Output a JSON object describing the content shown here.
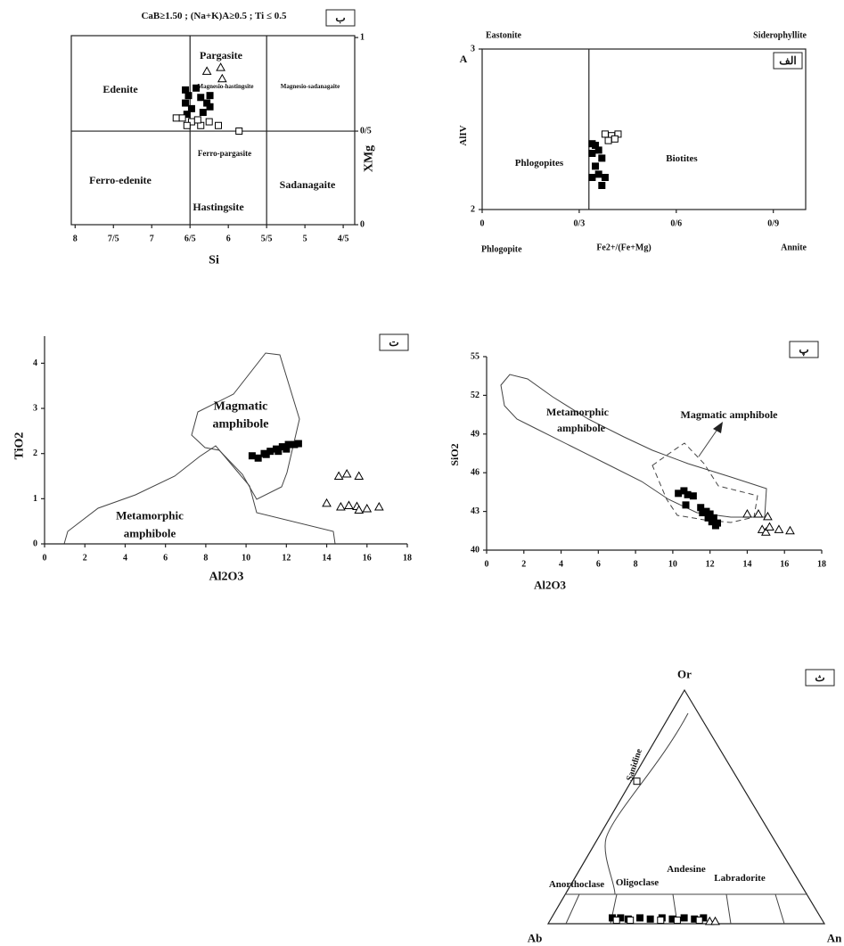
{
  "chart_data": [
    {
      "type": "scatter",
      "title": "CaB≥1.50 ; (Na+K)A≥0.5 ; Ti ≤ 0.5",
      "panel_label": "ب",
      "xlabel": "Si",
      "ylabel": "XMg",
      "xlim": [
        8.05,
        4.35
      ],
      "ylim": [
        0,
        1.01
      ],
      "xticks": [
        8,
        {
          "value": 7.5,
          "label": "7/5"
        },
        7,
        {
          "value": 6.5,
          "label": "6/5"
        },
        6,
        {
          "value": 5.5,
          "label": "5/5"
        },
        5,
        {
          "value": 4.5,
          "label": "4/5"
        }
      ],
      "yticks": [
        0,
        {
          "value": 0.5,
          "label": "0/5"
        },
        1
      ],
      "dividers_x": [
        6.5,
        5.5
      ],
      "dividers_y": [
        0.5
      ],
      "annotations": [
        "Edenite",
        "Pargasite",
        "Magnesio-hastingsite",
        "Magnesio-sadanagaite",
        "Ferro-edenite",
        "Ferro-pargasite",
        "Sadanagaite",
        "Hastingsite"
      ],
      "series": [
        {
          "marker": "square",
          "color": "#000000",
          "x": [
            6.56,
            6.52,
            6.56,
            6.48,
            6.36,
            6.28,
            6.24,
            6.33,
            6.42,
            6.54,
            6.24
          ],
          "values": [
            0.72,
            0.69,
            0.65,
            0.62,
            0.68,
            0.65,
            0.69,
            0.6,
            0.73,
            0.59,
            0.63
          ]
        },
        {
          "marker": "open-square",
          "color": "#000000",
          "x": [
            6.68,
            6.6,
            6.48,
            6.36,
            6.25,
            6.13,
            6.4,
            5.86,
            6.54
          ],
          "values": [
            0.57,
            0.57,
            0.55,
            0.53,
            0.55,
            0.53,
            0.56,
            0.5,
            0.53
          ]
        },
        {
          "marker": "triangle",
          "color": "#000000",
          "x": [
            6.28,
            6.1,
            6.08
          ],
          "values": [
            0.82,
            0.84,
            0.78
          ]
        }
      ]
    },
    {
      "type": "scatter",
      "panel_label": "الف",
      "xlabel": "Fe2+/(Fe+Mg)",
      "ylabel": "AlIV",
      "xlim": [
        0,
        1
      ],
      "ylim": [
        2,
        3
      ],
      "xticks": [
        0,
        {
          "value": 0.3,
          "label": "0/3"
        },
        {
          "value": 0.6,
          "label": "0/6"
        },
        {
          "value": 0.9,
          "label": "0/9"
        }
      ],
      "yticks": [
        2,
        3
      ],
      "dividers_x": [
        0.33
      ],
      "annotations": [
        "Eastonite",
        "Siderophyllite",
        "Phlogopite",
        "Annite",
        "Phlogopites",
        "Biotites",
        "A"
      ],
      "series": [
        {
          "marker": "square",
          "color": "#000000",
          "x": [
            0.34,
            0.35,
            0.36,
            0.34,
            0.37,
            0.35,
            0.36,
            0.38,
            0.34,
            0.37
          ],
          "values": [
            2.41,
            2.4,
            2.37,
            2.35,
            2.32,
            2.27,
            2.22,
            2.2,
            2.2,
            2.15
          ]
        },
        {
          "marker": "open-square",
          "color": "#000000",
          "x": [
            0.38,
            0.4,
            0.42,
            0.39,
            0.41
          ],
          "values": [
            2.47,
            2.46,
            2.47,
            2.43,
            2.44
          ]
        }
      ]
    },
    {
      "type": "scatter",
      "panel_label": "ت",
      "xlabel": "Al2O3",
      "ylabel": "TiO2",
      "xlim": [
        0,
        18
      ],
      "ylim": [
        0,
        4.6
      ],
      "xticks": [
        0,
        2,
        4,
        6,
        8,
        10,
        12,
        14,
        16,
        18
      ],
      "yticks": [
        0,
        1,
        2,
        3,
        4
      ],
      "annotations": [
        "Magmatic",
        "amphibole",
        "Metamorphic",
        "amphibole"
      ],
      "series": [
        {
          "marker": "square",
          "color": "#000000",
          "x": [
            10.3,
            10.6,
            10.9,
            11.2,
            11.5,
            11.8,
            12.1,
            12.4,
            12.6,
            11.0,
            11.6,
            12.0
          ],
          "values": [
            1.95,
            1.9,
            2.0,
            2.05,
            2.1,
            2.15,
            2.2,
            2.2,
            2.22,
            1.98,
            2.05,
            2.1
          ]
        },
        {
          "marker": "triangle",
          "color": "#000000",
          "x": [
            14.0,
            14.6,
            15.0,
            15.6,
            14.7,
            15.1,
            15.5,
            15.6,
            16.0,
            16.6
          ],
          "values": [
            0.9,
            1.5,
            1.55,
            1.5,
            0.82,
            0.85,
            0.83,
            0.75,
            0.78,
            0.82
          ]
        }
      ]
    },
    {
      "type": "scatter",
      "panel_label": "پ",
      "xlabel": "Al2O3",
      "ylabel": "SiO2",
      "xlim": [
        0,
        18
      ],
      "ylim": [
        40,
        55
      ],
      "xticks": [
        0,
        2,
        4,
        6,
        8,
        10,
        12,
        14,
        16,
        18
      ],
      "yticks": [
        40,
        43,
        46,
        49,
        52,
        55
      ],
      "annotations": [
        "Metamorphic",
        "amphibole",
        "Magmatic amphibole"
      ],
      "series": [
        {
          "marker": "square",
          "color": "#000000",
          "x": [
            10.3,
            10.6,
            10.8,
            11.1,
            10.7,
            11.5,
            11.8,
            12.0,
            12.2,
            12.4,
            11.6,
            12.1,
            11.9,
            12.3
          ],
          "values": [
            44.4,
            44.6,
            44.3,
            44.2,
            43.5,
            43.3,
            43.0,
            42.8,
            42.5,
            42.1,
            42.9,
            42.2,
            42.5,
            41.9
          ]
        },
        {
          "marker": "triangle",
          "color": "#000000",
          "x": [
            14.0,
            14.6,
            15.1,
            14.8,
            15.0,
            15.2,
            15.7,
            16.3
          ],
          "values": [
            42.8,
            42.8,
            42.6,
            41.6,
            41.4,
            41.8,
            41.6,
            41.5
          ]
        }
      ]
    },
    {
      "type": "ternary",
      "panel_label": "ث",
      "vertices": [
        "Or",
        "Ab",
        "An"
      ],
      "annotations": [
        "Sanidine",
        "Anorthoclase",
        "Oligoclase",
        "Andesine",
        "Labradorite"
      ],
      "series": [
        {
          "marker": "square",
          "color": "#000000",
          "or": [
            2.5,
            2.5,
            2,
            2.5,
            2,
            2.5,
            2,
            2.5,
            2,
            2.5
          ],
          "an": [
            22,
            25,
            28,
            32,
            36,
            40,
            44,
            48,
            52,
            55
          ]
        },
        {
          "marker": "open-square",
          "color": "#000000",
          "or": [
            1.5,
            1.5,
            1.5,
            1.5,
            1.5,
            61
          ],
          "an": [
            24,
            29,
            40,
            46,
            54,
            2
          ]
        },
        {
          "marker": "triangle",
          "color": "#000000",
          "or": [
            1,
            1
          ],
          "an": [
            58,
            60
          ]
        }
      ]
    }
  ]
}
